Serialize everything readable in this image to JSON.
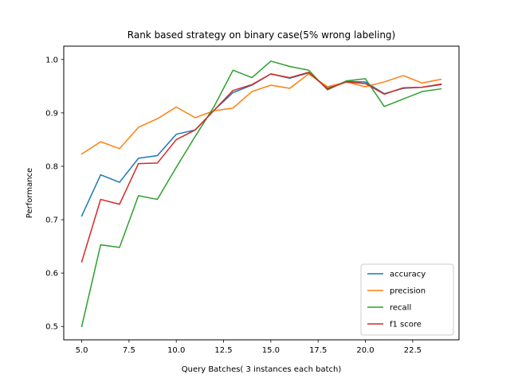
{
  "chart_data": {
    "type": "line",
    "title": "Rank based strategy on binary case(5% wrong labeling)",
    "xlabel": "Query Batches( 3 instances each batch)",
    "ylabel": "Performance",
    "xlim": [
      4.05,
      24.95
    ],
    "ylim": [
      0.475,
      1.025
    ],
    "xticks": [
      5.0,
      7.5,
      10.0,
      12.5,
      15.0,
      17.5,
      20.0,
      22.5
    ],
    "xtick_labels": [
      "5.0",
      "7.5",
      "10.0",
      "12.5",
      "15.0",
      "17.5",
      "20.0",
      "22.5"
    ],
    "yticks": [
      0.5,
      0.6,
      0.7,
      0.8,
      0.9,
      1.0
    ],
    "ytick_labels": [
      "0.5",
      "0.6",
      "0.7",
      "0.8",
      "0.9",
      "1.0"
    ],
    "grid": false,
    "legend_position": "lower right",
    "x": [
      5,
      6,
      7,
      8,
      9,
      10,
      11,
      12,
      13,
      14,
      15,
      16,
      17,
      18,
      19,
      20,
      21,
      22,
      23,
      24
    ],
    "series": [
      {
        "name": "accuracy",
        "color": "#1f77b4",
        "values": [
          0.707,
          0.784,
          0.77,
          0.815,
          0.82,
          0.86,
          0.868,
          0.905,
          0.938,
          0.952,
          0.973,
          0.965,
          0.975,
          0.946,
          0.959,
          0.958,
          0.936,
          0.946,
          0.948,
          0.953
        ]
      },
      {
        "name": "precision",
        "color": "#ff7f0e",
        "values": [
          0.823,
          0.846,
          0.833,
          0.873,
          0.889,
          0.911,
          0.891,
          0.904,
          0.909,
          0.94,
          0.952,
          0.946,
          0.973,
          0.949,
          0.958,
          0.949,
          0.958,
          0.97,
          0.956,
          0.963
        ]
      },
      {
        "name": "recall",
        "color": "#2ca02c",
        "values": [
          0.5,
          0.653,
          0.648,
          0.745,
          0.738,
          0.798,
          0.856,
          0.912,
          0.98,
          0.966,
          0.997,
          0.987,
          0.98,
          0.943,
          0.96,
          0.964,
          0.912,
          0.926,
          0.94,
          0.945
        ]
      },
      {
        "name": "f1 score",
        "color": "#d62728",
        "values": [
          0.621,
          0.738,
          0.729,
          0.805,
          0.806,
          0.85,
          0.868,
          0.905,
          0.942,
          0.953,
          0.973,
          0.966,
          0.976,
          0.945,
          0.958,
          0.955,
          0.935,
          0.947,
          0.948,
          0.954
        ]
      }
    ]
  }
}
